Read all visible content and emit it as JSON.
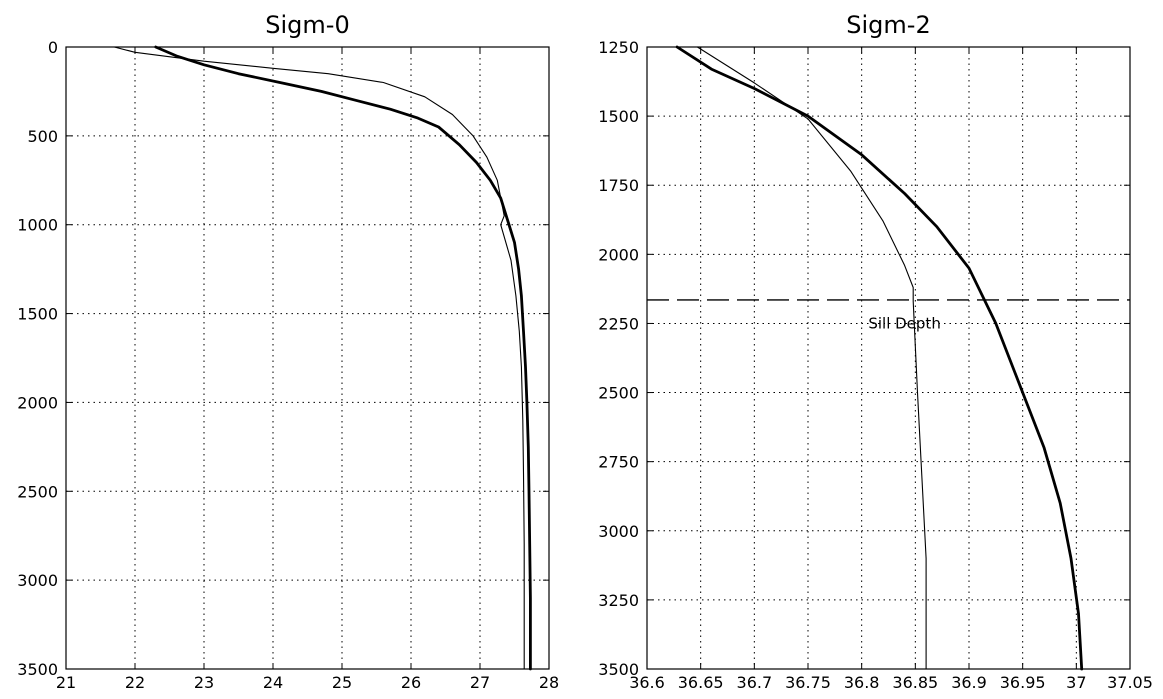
{
  "chart_data": [
    {
      "type": "line",
      "title": "Sigm-0",
      "xlabel": "",
      "ylabel": "",
      "xlim": [
        21,
        28
      ],
      "ylim": [
        3500,
        0
      ],
      "y_inverted": true,
      "grid": true,
      "xticks": [
        21,
        22,
        23,
        24,
        25,
        26,
        27,
        28
      ],
      "xtick_labels": [
        "21",
        "22",
        "23",
        "24",
        "25",
        "26",
        "27",
        "28"
      ],
      "yticks": [
        0,
        500,
        1000,
        1500,
        2000,
        2500,
        3000,
        3500
      ],
      "ytick_labels": [
        "0",
        "500",
        "1000",
        "1500",
        "2000",
        "2500",
        "3000",
        "3500"
      ],
      "series": [
        {
          "style": "thick",
          "x": [
            22.3,
            22.6,
            23.0,
            23.5,
            24.1,
            24.7,
            25.2,
            25.7,
            26.1,
            26.4,
            26.7,
            26.95,
            27.15,
            27.3,
            27.42,
            27.5,
            27.56,
            27.6,
            27.63,
            27.66,
            27.68,
            27.7,
            27.71,
            27.72,
            27.73,
            27.73
          ],
          "y": [
            0,
            50,
            100,
            150,
            200,
            250,
            300,
            350,
            400,
            450,
            550,
            650,
            750,
            850,
            1000,
            1100,
            1250,
            1400,
            1600,
            1800,
            2000,
            2250,
            2500,
            2800,
            3100,
            3500
          ]
        },
        {
          "style": "thin",
          "x": [
            21.7,
            22.0,
            23.0,
            24.0,
            24.8,
            25.6,
            26.2,
            26.6,
            26.9,
            27.1,
            27.25,
            27.35,
            27.3,
            27.45,
            27.52,
            27.57,
            27.6,
            27.62,
            27.63,
            27.64,
            27.64,
            27.64
          ],
          "y": [
            0,
            30,
            80,
            120,
            150,
            200,
            280,
            380,
            500,
            620,
            750,
            950,
            1000,
            1200,
            1400,
            1600,
            1800,
            2100,
            2400,
            2800,
            3200,
            3500
          ]
        }
      ]
    },
    {
      "type": "line",
      "title": "Sigm-2",
      "xlabel": "",
      "ylabel": "",
      "xlim": [
        36.6,
        37.05
      ],
      "ylim": [
        3500,
        1250
      ],
      "y_inverted": true,
      "grid": true,
      "xticks": [
        36.6,
        36.65,
        36.7,
        36.75,
        36.8,
        36.85,
        36.9,
        36.95,
        37.0,
        37.05
      ],
      "xtick_labels": [
        "36.6",
        "36.65",
        "36.7",
        "36.75",
        "36.8",
        "36.85",
        "36.9",
        "36.95",
        "37",
        "37.05"
      ],
      "yticks": [
        1250,
        1500,
        1750,
        2000,
        2250,
        2500,
        2750,
        3000,
        3250,
        3500
      ],
      "ytick_labels": [
        "1250",
        "1500",
        "1750",
        "2000",
        "2250",
        "2500",
        "2750",
        "3000",
        "3250",
        "3500"
      ],
      "series": [
        {
          "style": "thick",
          "x": [
            36.628,
            36.66,
            36.7,
            36.75,
            36.8,
            36.84,
            36.87,
            36.9,
            36.925,
            36.95,
            36.97,
            36.985,
            36.995,
            37.002,
            37.005
          ],
          "y": [
            1250,
            1330,
            1400,
            1500,
            1640,
            1780,
            1900,
            2050,
            2250,
            2500,
            2700,
            2900,
            3100,
            3300,
            3500
          ]
        },
        {
          "style": "thin",
          "x": [
            36.647,
            36.7,
            36.75,
            36.79,
            36.82,
            36.84,
            36.848,
            36.848,
            36.852,
            36.856,
            36.86,
            36.86
          ],
          "y": [
            1250,
            1380,
            1510,
            1700,
            1880,
            2040,
            2120,
            2170,
            2500,
            2800,
            3100,
            3500
          ]
        }
      ],
      "reference_lines": [
        {
          "orientation": "horizontal",
          "value": 2165,
          "style": "dashed"
        }
      ],
      "annotations": [
        {
          "text": "Sill Depth",
          "x": 36.84,
          "y": 2250
        }
      ]
    }
  ]
}
